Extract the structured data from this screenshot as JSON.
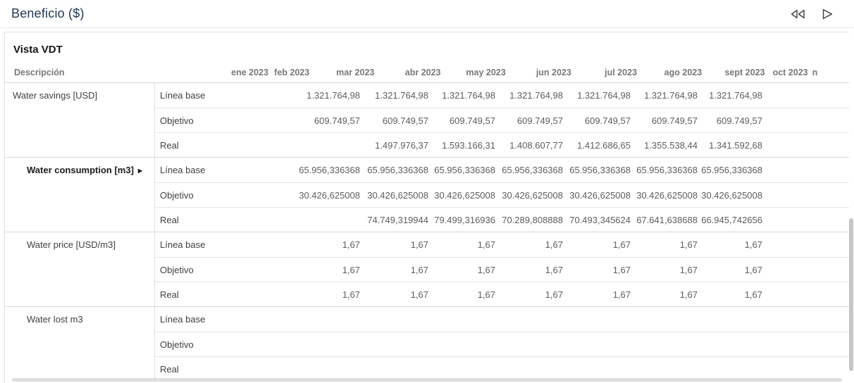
{
  "topbar": {
    "title": "Beneficio ($)",
    "icons": {
      "rewind": "fast-rewind",
      "play": "play"
    }
  },
  "card": {
    "title": "Vista VDT"
  },
  "table": {
    "description_header": "Descripción",
    "columns": [
      "ene 2023",
      "feb 2023",
      "mar 2023",
      "abr 2023",
      "may 2023",
      "jun 2023",
      "jul 2023",
      "ago 2023",
      "sept 2023",
      "oct 2023",
      "n"
    ],
    "expand_icon": "▶",
    "groups": [
      {
        "label": "Water savings [USD]",
        "bold": false,
        "indent": false,
        "expandable": false,
        "rows": [
          {
            "label": "Línea base",
            "values": [
              "",
              "",
              "1.321.764,98",
              "1.321.764,98",
              "1.321.764,98",
              "1.321.764,98",
              "1.321.764,98",
              "1.321.764,98",
              "1.321.764,98",
              "",
              ""
            ]
          },
          {
            "label": "Objetivo",
            "values": [
              "",
              "",
              "609.749,57",
              "609.749,57",
              "609.749,57",
              "609.749,57",
              "609.749,57",
              "609.749,57",
              "609.749,57",
              "",
              ""
            ]
          },
          {
            "label": "Real",
            "values": [
              "",
              "",
              "",
              "1.497.976,37",
              "1.593.166,31",
              "1.408.607,77",
              "1.412.686,65",
              "1.355.538,44",
              "1.341.592,68",
              "",
              ""
            ]
          }
        ]
      },
      {
        "label": "Water consumption [m3]",
        "bold": true,
        "indent": true,
        "expandable": true,
        "rows": [
          {
            "label": "Línea base",
            "values": [
              "",
              "",
              "65.956,336368",
              "65.956,336368",
              "65.956,336368",
              "65.956,336368",
              "65.956,336368",
              "65.956,336368",
              "65.956,336368",
              "",
              ""
            ]
          },
          {
            "label": "Objetivo",
            "values": [
              "",
              "",
              "30.426,625008",
              "30.426,625008",
              "30.426,625008",
              "30.426,625008",
              "30.426,625008",
              "30.426,625008",
              "30.426,625008",
              "",
              ""
            ]
          },
          {
            "label": "Real",
            "values": [
              "",
              "",
              "",
              "74.749,319944",
              "79.499,316936",
              "70.289,808888",
              "70.493,345624",
              "67.641,638688",
              "66.945,742656",
              "",
              ""
            ]
          }
        ]
      },
      {
        "label": "Water price [USD/m3]",
        "bold": false,
        "indent": true,
        "expandable": false,
        "rows": [
          {
            "label": "Línea base",
            "values": [
              "",
              "",
              "1,67",
              "1,67",
              "1,67",
              "1,67",
              "1,67",
              "1,67",
              "1,67",
              "",
              ""
            ]
          },
          {
            "label": "Objetivo",
            "values": [
              "",
              "",
              "1,67",
              "1,67",
              "1,67",
              "1,67",
              "1,67",
              "1,67",
              "1,67",
              "",
              ""
            ]
          },
          {
            "label": "Real",
            "values": [
              "",
              "",
              "1,67",
              "1,67",
              "1,67",
              "1,67",
              "1,67",
              "1,67",
              "1,67",
              "",
              ""
            ]
          }
        ]
      },
      {
        "label": "Water lost m3",
        "bold": false,
        "indent": true,
        "expandable": false,
        "rows": [
          {
            "label": "Línea base",
            "values": [
              "",
              "",
              "",
              "",
              "",
              "",
              "",
              "",
              "",
              "",
              ""
            ]
          },
          {
            "label": "Objetivo",
            "values": [
              "",
              "",
              "",
              "",
              "",
              "",
              "",
              "",
              "",
              "",
              ""
            ]
          },
          {
            "label": "Real",
            "values": [
              "",
              "",
              "",
              "",
              "",
              "",
              "",
              "",
              "",
              "",
              ""
            ]
          }
        ]
      }
    ]
  },
  "colors": {
    "title_text": "#233850",
    "header_text": "#787878",
    "value_text": "#5d5d5d",
    "divider": "#e0e0e0"
  }
}
